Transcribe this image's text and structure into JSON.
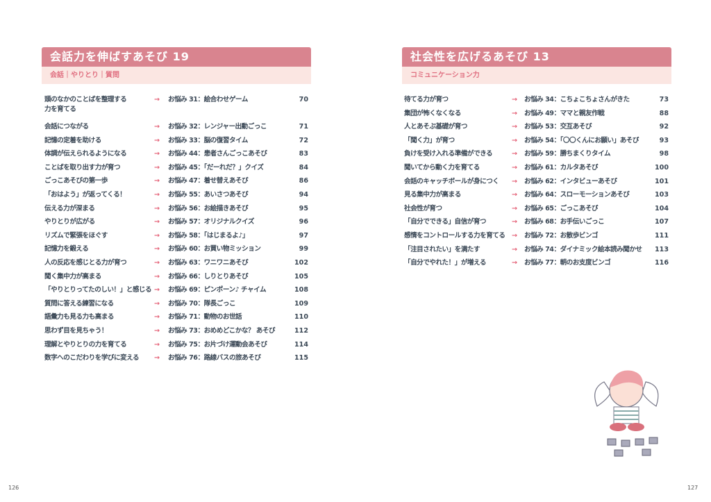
{
  "left": {
    "title": "会話力を伸ばすあそび 19",
    "subtitle": "会話｜やりとり｜質問",
    "page_number": "126",
    "rows": [
      {
        "text": "頭のなかのことばを整理する\n力を育てる",
        "item": "お悩み 31：絵合わせゲーム",
        "page": "70"
      },
      {
        "text": "会話につながる",
        "item": "お悩み 32：レンジャー出動ごっこ",
        "page": "71"
      },
      {
        "text": "記憶の定着を助ける",
        "item": "お悩み 33：脳の復習タイム",
        "page": "72"
      },
      {
        "text": "体調が伝えられるようになる",
        "item": "お悩み 44：患者さんごっこあそび",
        "page": "83"
      },
      {
        "text": "ことばを取り出す力が育つ",
        "item": "お悩み 45：「だーれだ？」クイズ",
        "page": "84"
      },
      {
        "text": "ごっこあそびの第一歩",
        "item": "お悩み 47：着せ替えあそび",
        "page": "86"
      },
      {
        "text": "「おはよう」が返ってくる！",
        "item": "お悩み 55：あいさつあそび",
        "page": "94"
      },
      {
        "text": "伝える力が深まる",
        "item": "お悩み 56：お絵描きあそび",
        "page": "95"
      },
      {
        "text": "やりとりが広がる",
        "item": "お悩み 57：オリジナルクイズ",
        "page": "96"
      },
      {
        "text": "リズムで緊張をほぐす",
        "item": "お悩み 58：「はじまるよ♪」",
        "page": "97"
      },
      {
        "text": "記憶力を鍛える",
        "item": "お悩み 60：お買い物ミッション",
        "page": "99"
      },
      {
        "text": "人の反応を感じとる力が育つ",
        "item": "お悩み 63：ワニワニあそび",
        "page": "102"
      },
      {
        "text": "聞く集中力が高まる",
        "item": "お悩み 66：しりとりあそび",
        "page": "105"
      },
      {
        "text": "「やりとりってたのしい！」と感じる",
        "item": "お悩み 69：ピンポーン♪ チャイム",
        "page": "108"
      },
      {
        "text": "質問に答える練習になる",
        "item": "お悩み 70：隊長ごっこ",
        "page": "109"
      },
      {
        "text": "語彙力も見る力も高まる",
        "item": "お悩み 71：動物のお世話",
        "page": "110"
      },
      {
        "text": "思わず目を見ちゃう！",
        "item": "お悩み 73：おめめどこかな？ あそび",
        "page": "112"
      },
      {
        "text": "理解とやりとりの力を育てる",
        "item": "お悩み 75：お片づけ運動会あそび",
        "page": "114"
      },
      {
        "text": "数字へのこだわりを学びに変える",
        "item": "お悩み 76：路線バスの旅あそび",
        "page": "115"
      }
    ]
  },
  "right": {
    "title": "社会性を広げるあそび 13",
    "subtitle": "コミュニケーション力",
    "page_number": "127",
    "rows": [
      {
        "text": "待てる力が育つ",
        "item": "お悩み 34：こちょこちょさんがきた",
        "page": "73"
      },
      {
        "text": "集団が怖くなくなる",
        "item": "お悩み 49：ママと親友作戦",
        "page": "88"
      },
      {
        "text": "人とあそぶ基礎が育つ",
        "item": "お悩み 53：交互あそび",
        "page": "92"
      },
      {
        "text": "「聞く力」が育つ",
        "item": "お悩み 54：「〇〇くんにお願い」あそび",
        "page": "93"
      },
      {
        "text": "負けを受け入れる準備ができる",
        "item": "お悩み 59：勝ちまくりタイム",
        "page": "98"
      },
      {
        "text": "聞いてから動く力を育てる",
        "item": "お悩み 61：カルタあそび",
        "page": "100"
      },
      {
        "text": "会話のキャッチボールが身につく",
        "item": "お悩み 62：インタビューあそび",
        "page": "101"
      },
      {
        "text": "見る集中力が高まる",
        "item": "お悩み 64：スローモーションあそび",
        "page": "103"
      },
      {
        "text": "社会性が育つ",
        "item": "お悩み 65：ごっこあそび",
        "page": "104"
      },
      {
        "text": "「自分でできる」自信が育つ",
        "item": "お悩み 68：お手伝いごっこ",
        "page": "107"
      },
      {
        "text": "感情をコントロールする力を育てる",
        "item": "お悩み 72：お散歩ビンゴ",
        "page": "111"
      },
      {
        "text": "「注目されたい」を満たす",
        "item": "お悩み 74：ダイナミック絵本読み聞かせ",
        "page": "113"
      },
      {
        "text": "「自分でやれた！」が増える",
        "item": "お悩み 77：朝のお支度ビンゴ",
        "page": "116"
      }
    ]
  },
  "arrow": "→",
  "colors": {
    "header": "#d9848f",
    "subheader": "#fbe6e2",
    "accent": "#e35b72"
  }
}
